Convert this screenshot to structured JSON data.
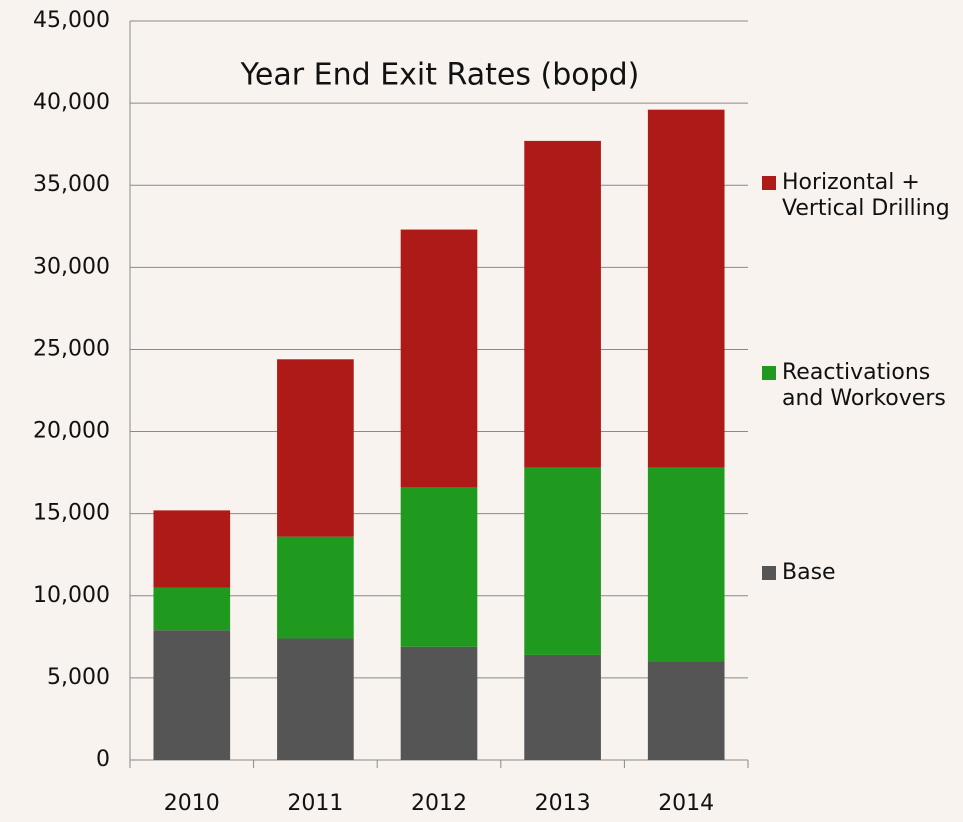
{
  "chart_data": {
    "type": "stacked_bar",
    "title": "Year End Exit Rates (bopd)",
    "categories": [
      "2010",
      "2011",
      "2012",
      "2013",
      "2014"
    ],
    "series": [
      {
        "name": "Base",
        "color": "#555555",
        "values": [
          7900,
          7400,
          6900,
          6400,
          6000
        ]
      },
      {
        "name": "Reactivations and Workovers",
        "color": "#1f9a1f",
        "values": [
          2600,
          6200,
          9700,
          11400,
          11800
        ]
      },
      {
        "name": "Horizontal + Vertical Drilling",
        "color": "#ae1a17",
        "values": [
          4700,
          10800,
          15700,
          19900,
          21800
        ]
      }
    ],
    "ylim": [
      0,
      45000
    ],
    "yticks": [
      0,
      {
        "value": 5000,
        "label": "5,000"
      },
      {
        "value": 10000,
        "label": "10,000"
      },
      {
        "value": 15000,
        "label": "15,000"
      },
      {
        "value": 20000,
        "label": "20,000"
      },
      {
        "value": 25000,
        "label": "25,000"
      },
      {
        "value": 30000,
        "label": "30,000"
      },
      {
        "value": 35000,
        "label": "35,000"
      },
      {
        "value": 40000,
        "label": "40,000"
      },
      {
        "value": 45000,
        "label": "45,000"
      }
    ],
    "grid": true
  }
}
